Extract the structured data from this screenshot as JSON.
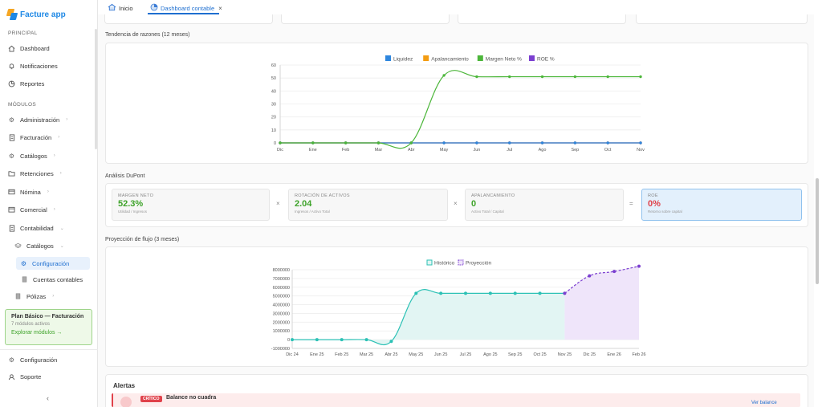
{
  "brand": {
    "name": "Facture app"
  },
  "sidebar": {
    "section_principal": "PRINCIPAL",
    "principal_items": [
      {
        "label": "Dashboard",
        "icon": "home-icon"
      },
      {
        "label": "Notificaciones",
        "icon": "bell-icon"
      },
      {
        "label": "Reportes",
        "icon": "pie-chart-icon"
      }
    ],
    "section_modulos": "MÓDULOS",
    "module_items": [
      {
        "label": "Administración",
        "icon": "gear-icon"
      },
      {
        "label": "Facturación",
        "icon": "document-icon"
      },
      {
        "label": "Catálogos",
        "icon": "gear-icon"
      },
      {
        "label": "Retenciones",
        "icon": "folder-icon"
      },
      {
        "label": "Nómina",
        "icon": "card-icon"
      },
      {
        "label": "Comercial",
        "icon": "folder-icon"
      },
      {
        "label": "Contabilidad",
        "icon": "document-icon"
      }
    ],
    "sub_catalogos": "Catálogos",
    "sub_configuracion": "Configuración",
    "sub_cuentas": "Cuentas contables",
    "sub_polizas": "Pólizas",
    "plan": {
      "title": "Plan Básico — Facturación",
      "sub": "7 módulos activos",
      "link": "Explorar módulos →"
    },
    "footer_items": [
      {
        "label": "Configuración",
        "icon": "gear-icon"
      },
      {
        "label": "Soporte",
        "icon": "support-icon"
      }
    ]
  },
  "tabs": [
    {
      "label": "Inicio",
      "icon": "home-icon"
    },
    {
      "label": "Dashboard contable",
      "icon": "pie-chart-icon",
      "close": "×"
    }
  ],
  "main": {
    "ratios_title": "Tendencia de razones (12 meses)",
    "dupont_title": "Análisis DuPont",
    "flow_title": "Proyección de flujo (3 meses)",
    "alerts_title": "Alertas",
    "dupont": [
      {
        "label": "MARGEN NETO",
        "value": "52.3%",
        "sub": "Utilidad / Ingresos"
      },
      {
        "label": "ROTACIÓN DE ACTIVOS",
        "value": "2.04",
        "sub": "Ingresos / Activo Total"
      },
      {
        "label": "APALANCAMIENTO",
        "value": "0",
        "sub": "Activo Total / Capital"
      },
      {
        "label": "ROE",
        "value": "0%",
        "sub": "Retorno sobre capital"
      }
    ],
    "dupont_ops": [
      "×",
      "×",
      "="
    ],
    "alert": {
      "badge": "CRÍTICO",
      "text": "Balance no cuadra",
      "link": "Ver balance"
    }
  },
  "chart_data": [
    {
      "type": "line",
      "categories": [
        "Dic",
        "Ene",
        "Feb",
        "Mar",
        "Abr",
        "May",
        "Jun",
        "Jul",
        "Ago",
        "Sep",
        "Oct",
        "Nov"
      ],
      "ylim": [
        0,
        60
      ],
      "yticks": [
        0,
        10,
        20,
        30,
        40,
        50,
        60
      ],
      "legend_position": "top",
      "series": [
        {
          "name": "Liquidez",
          "color": "#2e86de",
          "values": [
            0,
            0,
            0,
            0,
            0,
            0,
            0,
            0,
            0,
            0,
            0,
            0
          ]
        },
        {
          "name": "Apalancamiento",
          "color": "#f39c12",
          "values": [
            0,
            0,
            0,
            0,
            0,
            0,
            0,
            0,
            0,
            0,
            0,
            0
          ]
        },
        {
          "name": "Margen Neto %",
          "color": "#4cb63a",
          "values": [
            0,
            0,
            0,
            0,
            0,
            52,
            51,
            51,
            51,
            51,
            51,
            51
          ]
        },
        {
          "name": "ROE %",
          "color": "#7b3fd0",
          "values": [
            0,
            0,
            0,
            0,
            0,
            0,
            0,
            0,
            0,
            0,
            0,
            0
          ]
        }
      ]
    },
    {
      "type": "area",
      "categories": [
        "Dic 24",
        "Ene 25",
        "Feb 25",
        "Mar 25",
        "Abr 25",
        "May 25",
        "Jun 25",
        "Jul 25",
        "Ago 25",
        "Sep 25",
        "Oct 25",
        "Nov 25",
        "Dic 25",
        "Ene 26",
        "Feb 26"
      ],
      "ylim": [
        -1000000,
        8000000
      ],
      "yticks": [
        -1000000,
        0,
        1000000,
        2000000,
        3000000,
        4000000,
        5000000,
        6000000,
        7000000,
        8000000
      ],
      "legend_position": "top",
      "series": [
        {
          "name": "Histórico",
          "color": "#2cc1b5",
          "values": [
            0,
            0,
            0,
            0,
            -200000,
            5300000,
            5300000,
            5300000,
            5300000,
            5300000,
            5300000,
            5300000,
            null,
            null,
            null
          ]
        },
        {
          "name": "Proyección",
          "color": "#7b3fd0",
          "values": [
            null,
            null,
            null,
            null,
            null,
            null,
            null,
            null,
            null,
            null,
            null,
            5300000,
            7300000,
            7800000,
            8400000
          ]
        }
      ]
    }
  ]
}
